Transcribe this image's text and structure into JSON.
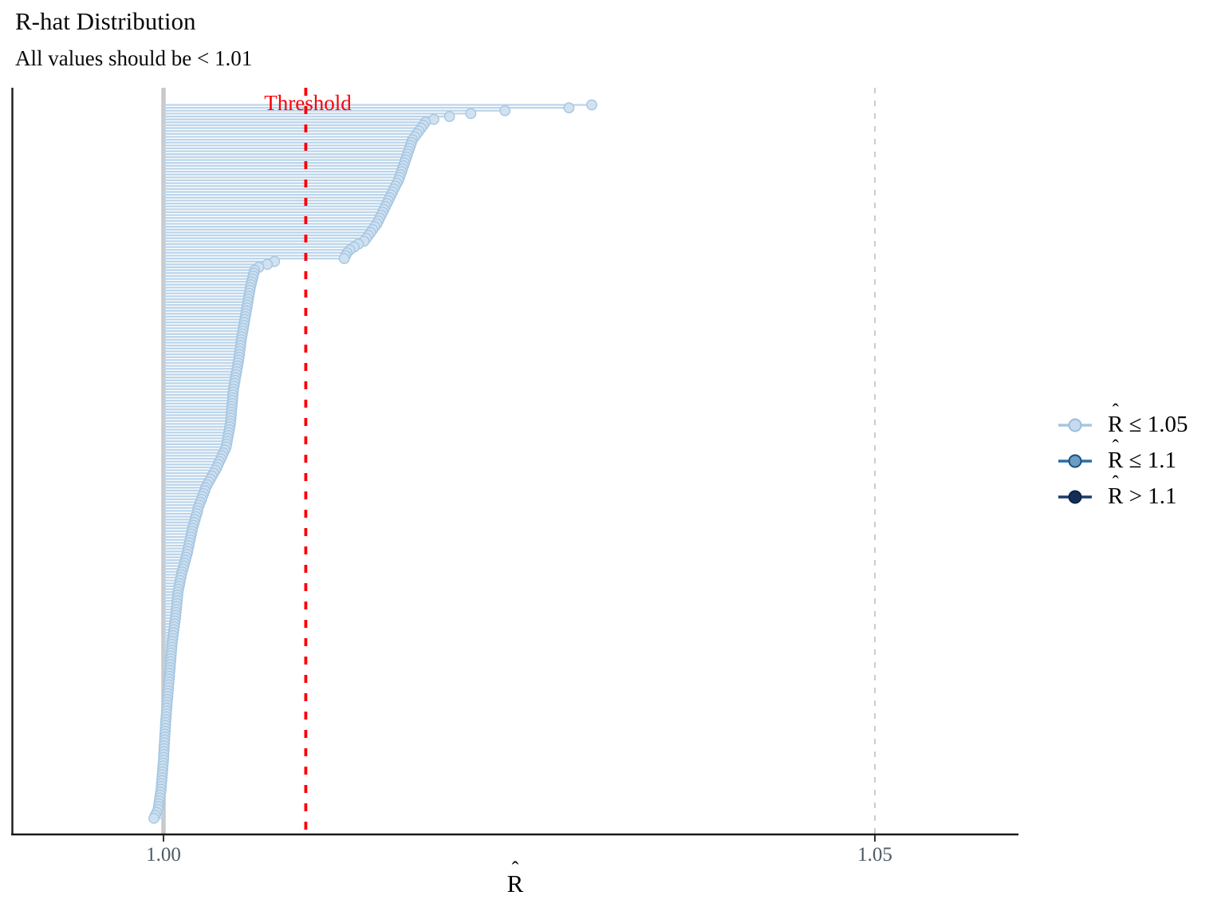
{
  "title": "R-hat Distribution",
  "subtitle": "All values should be < 1.01",
  "threshold": {
    "label": "Threshold",
    "value": 1.01,
    "color": "#fb0006"
  },
  "reference_lines": {
    "solid_at": 1.0,
    "dashed_at": 1.05,
    "solid_color": "#c9c9c9",
    "dashed_color": "#cccccc"
  },
  "x_axis": {
    "label": "R̂",
    "ticks": [
      {
        "value": 1.0,
        "label": "1.00"
      },
      {
        "value": 1.05,
        "label": "1.05"
      }
    ]
  },
  "legend": {
    "position": "right",
    "entries": [
      {
        "label": "R̂ ≤ 1.05",
        "line_color": "#a9c6e1",
        "fill_color": "#c6dbef",
        "stroke_color": "#9dbdd9"
      },
      {
        "label": "R̂ ≤ 1.1",
        "line_color": "#2e6da4",
        "fill_color": "#6b9dc2",
        "stroke_color": "#1c4e7e"
      },
      {
        "label": "R̂ > 1.1",
        "line_color": "#1d3d6d",
        "fill_color": "#142e57",
        "stroke_color": "#0d2344"
      }
    ]
  },
  "style_colors": {
    "lollipop_line": "#bcd5ea",
    "dot_fill": "#cfe0f0",
    "dot_stroke": "#a6c6e1",
    "axis": "#1a1a1a",
    "tick_label": "#4e5a66"
  },
  "chart_data": {
    "type": "scatter",
    "subtype": "horizontal-lollipop (mcmc_rhat)",
    "title": "R-hat Distribution",
    "subtitle": "All values should be < 1.01",
    "xlabel": "R̂",
    "xlim": [
      0.989,
      1.06
    ],
    "x_ticks": [
      1.0,
      1.05
    ],
    "threshold": 1.01,
    "grid": false,
    "legend_position": "right",
    "n_parameters": 247,
    "max_value": 1.0301,
    "min_value": 0.99933,
    "values": [
      1.0301,
      1.0285,
      1.024,
      1.0216,
      1.0201,
      1.019,
      1.0184,
      1.01825,
      1.0181,
      1.01795,
      1.0178,
      1.01765,
      1.0175,
      1.01743,
      1.01736,
      1.01729,
      1.01722,
      1.01715,
      1.01708,
      1.01701,
      1.01694,
      1.01687,
      1.0168,
      1.01673,
      1.01666,
      1.01659,
      1.01652,
      1.0164,
      1.0163,
      1.0162,
      1.0161,
      1.016,
      1.0159,
      1.0158,
      1.0157,
      1.0156,
      1.0155,
      1.0154,
      1.0153,
      1.0152,
      1.0151,
      1.015,
      1.01485,
      1.0147,
      1.01455,
      1.0144,
      1.01425,
      1.0141,
      1.0137,
      1.0134,
      1.0131,
      1.0129,
      1.0128,
      1.0127,
      1.0078,
      1.0073,
      1.0067,
      1.0064,
      1.00635,
      1.0063,
      1.00625,
      1.0062,
      1.00615,
      1.0061,
      1.00607,
      1.00603,
      1.006,
      1.00596,
      1.00593,
      1.00589,
      1.00586,
      1.00582,
      1.00579,
      1.00575,
      1.00572,
      1.00568,
      1.00565,
      1.00561,
      1.00558,
      1.00554,
      1.0055,
      1.00547,
      1.00544,
      1.00542,
      1.00539,
      1.00536,
      1.00534,
      1.00531,
      1.00528,
      1.00524,
      1.00521,
      1.00517,
      1.00514,
      1.0051,
      1.00506,
      1.00503,
      1.00499,
      1.00496,
      1.00492,
      1.0049,
      1.00488,
      1.00486,
      1.00485,
      1.00483,
      1.00481,
      1.00479,
      1.00477,
      1.00476,
      1.00474,
      1.00472,
      1.0047,
      1.00466,
      1.00463,
      1.00459,
      1.00455,
      1.00451,
      1.00448,
      1.00444,
      1.0044,
      1.00431,
      1.00421,
      1.00412,
      1.00403,
      1.00393,
      1.00384,
      1.00375,
      1.00364,
      1.00352,
      1.00341,
      1.0033,
      1.00318,
      1.00307,
      1.00296,
      1.0029,
      1.00282,
      1.00274,
      1.00267,
      1.00259,
      1.00251,
      1.00243,
      1.0024,
      1.00234,
      1.00228,
      1.00222,
      1.00216,
      1.0021,
      1.00204,
      1.002,
      1.00196,
      1.00191,
      1.00187,
      1.00182,
      1.00178,
      1.00173,
      1.0017,
      1.00165,
      1.00159,
      1.00154,
      1.00148,
      1.00143,
      1.00137,
      1.0013,
      1.00126,
      1.00122,
      1.00118,
      1.00114,
      1.0011,
      1.00106,
      1.00102,
      1.001,
      1.00098,
      1.00096,
      1.00094,
      1.00092,
      1.0009,
      1.00088,
      1.00086,
      1.00084,
      1.00081,
      1.00078,
      1.00076,
      1.00073,
      1.0007,
      1.00067,
      1.00065,
      1.00062,
      1.0006,
      1.00058,
      1.00057,
      1.00055,
      1.00053,
      1.00052,
      1.0005,
      1.00048,
      1.00047,
      1.00045,
      1.00043,
      1.00042,
      1.0004,
      1.00038,
      1.00036,
      1.00035,
      1.00033,
      1.00031,
      1.0003,
      1.00028,
      1.00026,
      1.00025,
      1.00023,
      1.00021,
      1.0002,
      1.00018,
      1.00017,
      1.00015,
      1.00014,
      1.00013,
      1.00012,
      1.0001,
      1.00009,
      1.00008,
      1.00007,
      1.00005,
      1.00004,
      1.00003,
      1.00002,
      1.00001,
      1.0,
      0.99998,
      0.99996,
      0.99995,
      0.99993,
      0.99991,
      0.9999,
      0.99988,
      0.99986,
      0.99985,
      0.99983,
      0.9998,
      0.99977,
      0.99974,
      0.99971,
      0.99968,
      0.99965,
      0.99962,
      0.99952,
      0.99942,
      0.99933
    ]
  }
}
